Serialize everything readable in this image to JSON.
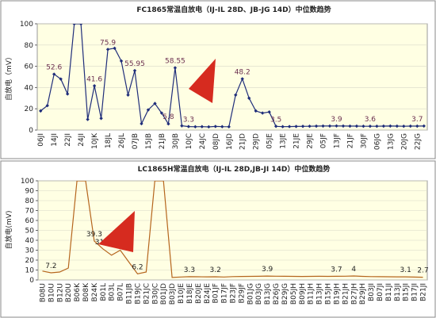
{
  "chart_data": [
    {
      "type": "line",
      "title": "FC1865常温自放电（IJ-IL 28D、JB-JG 14D）中位数趋势",
      "ylabel": "自放电（mV）",
      "ylim": [
        0,
        100
      ],
      "yticks": [
        0,
        20,
        40,
        60,
        80,
        100
      ],
      "grid": true,
      "color": "#1f2d7a",
      "marker": "diamond",
      "categories": [
        "06JI",
        null,
        "14JI",
        null,
        "22JI",
        null,
        "24JI",
        null,
        "10JK",
        null,
        "18JL",
        null,
        "26JL",
        null,
        "07JB",
        null,
        "15JB",
        null,
        "21JB",
        null,
        "30JB",
        null,
        "10JC",
        null,
        "24JC",
        null,
        "08JD",
        null,
        "16JD",
        null,
        "21JD",
        null,
        "29JD",
        null,
        "05JE",
        null,
        "13JE",
        null,
        "21JE",
        null,
        "29JE",
        null,
        "05JF",
        null,
        "13JF",
        null,
        "21JF",
        null,
        "30JF",
        null,
        "06JG",
        null,
        "13JG",
        null,
        "20JG",
        null,
        "22JG",
        null
      ],
      "values": [
        18,
        23,
        52.6,
        48,
        34,
        100,
        100,
        10,
        41.6,
        11,
        75.9,
        77,
        65,
        33,
        55.95,
        6,
        19,
        25,
        16,
        5.8,
        58.55,
        4,
        3.3,
        3.1,
        3.2,
        3.0,
        3.4,
        3.2,
        3.1,
        33,
        48.2,
        30,
        18,
        16,
        17,
        3.5,
        3.2,
        3.3,
        3.4,
        3.5,
        3.6,
        3.7,
        3.8,
        3.8,
        3.9,
        3.8,
        3.7,
        3.7,
        3.6,
        3.6,
        3.6,
        3.7,
        3.8,
        3.7,
        3.6,
        3.7,
        3.7,
        3.8
      ],
      "value_labels": [
        null,
        null,
        "52.6",
        null,
        null,
        null,
        null,
        null,
        "41.6",
        null,
        "75.9",
        null,
        null,
        null,
        "55.95",
        null,
        null,
        null,
        null,
        "5.8",
        "58.55",
        null,
        "3.3",
        null,
        null,
        null,
        null,
        null,
        null,
        null,
        "48.2",
        null,
        null,
        null,
        null,
        "3.5",
        null,
        null,
        null,
        null,
        null,
        null,
        null,
        null,
        "3.9",
        null,
        null,
        null,
        null,
        "3.6",
        null,
        null,
        null,
        null,
        null,
        null,
        "3.7",
        null
      ]
    },
    {
      "type": "line",
      "title": "LC1865H常温自放电（IJ-IL 28D,JB-JI 14D）中位数趋势",
      "ylabel": "自放电(mV)",
      "ylim": [
        0,
        100
      ],
      "yticks": [
        0,
        10,
        20,
        30,
        40,
        50,
        60,
        70,
        80,
        90,
        100
      ],
      "grid": true,
      "color": "#b5651d",
      "marker": "none",
      "categories": [
        "B08U",
        "B10U",
        "B12U",
        "B20U",
        "B06K",
        "B08K",
        "B24K",
        "B01L",
        "B03L",
        "B07L",
        "B11JB",
        "B19JC",
        "B21JC",
        "B30JC",
        "B01JD",
        "B03JD",
        "B10JE",
        "B18JE",
        "B20JE",
        "B24JE",
        "B01JF",
        "B17JF",
        "B23JF",
        "B29JF",
        "B01JG",
        "B03JG",
        "B13JG",
        "B26JG",
        "B29JG",
        "B05JH",
        "B09JH",
        "B11JH",
        "B13JH",
        "B15JH",
        "B19JH",
        "B21JH",
        "B27JH",
        "B29JH",
        "B03JI",
        "B07JI",
        "B11JI",
        "B13JI",
        "B15JI",
        "B17JI",
        "B21JI"
      ],
      "values": [
        9,
        7.2,
        8,
        12,
        100,
        100,
        39.3,
        31.4,
        25,
        30,
        18,
        6.2,
        8,
        100,
        100,
        2.5,
        3,
        3.3,
        3.2,
        3.1,
        3.2,
        3.0,
        3.4,
        3.5,
        3.6,
        3.7,
        3.9,
        3.8,
        3.7,
        3.6,
        3.5,
        3.6,
        3.7,
        3.6,
        3.7,
        3.8,
        4,
        3.6,
        3.4,
        3.3,
        3.2,
        3.1,
        3.1,
        2.9,
        2.7
      ],
      "value_labels": [
        null,
        "7.2",
        null,
        null,
        null,
        null,
        "39.3",
        "31.4",
        null,
        null,
        null,
        "6.2",
        null,
        null,
        null,
        null,
        null,
        "3.3",
        null,
        null,
        "3.2",
        null,
        null,
        null,
        null,
        null,
        "3.9",
        null,
        null,
        null,
        null,
        null,
        null,
        null,
        "3.7",
        null,
        "4",
        null,
        null,
        null,
        null,
        null,
        "3.1",
        null,
        "2.7"
      ]
    }
  ]
}
